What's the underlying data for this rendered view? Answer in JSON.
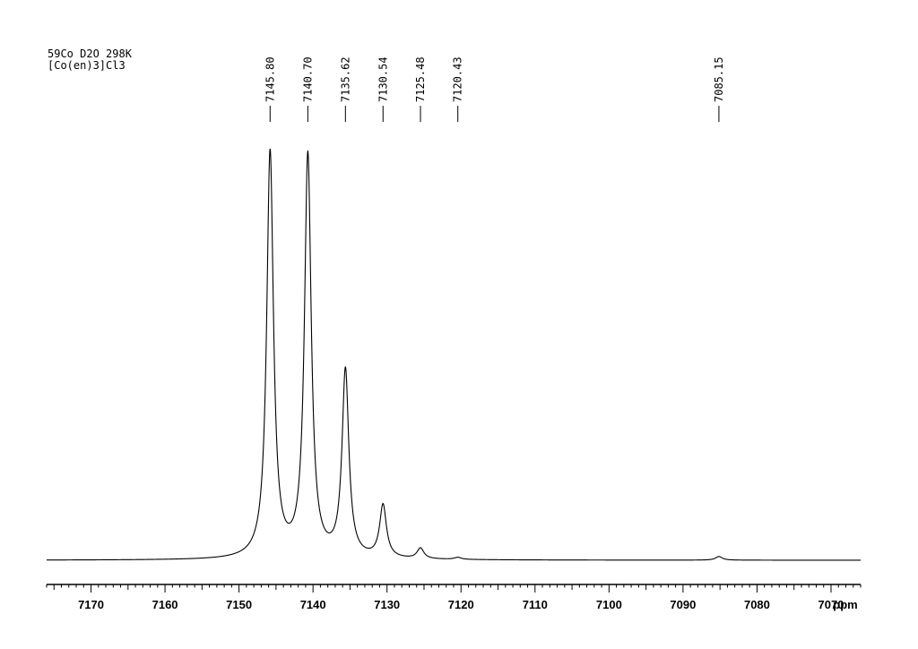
{
  "header": {
    "line1": "59Co D2O 298K",
    "line2": "[Co(en)3]Cl3"
  },
  "chart_data": {
    "type": "line",
    "x_unit": "ppm",
    "x_reversed": true,
    "xlim": [
      7176,
      7066
    ],
    "x_ticks": [
      7170,
      7160,
      7150,
      7140,
      7130,
      7120,
      7110,
      7100,
      7090,
      7080,
      7070
    ],
    "minor_tick_step": 1,
    "peak_labels": [
      "7145.80",
      "7140.70",
      "7135.62",
      "7130.54",
      "7125.48",
      "7120.43",
      "7085.15"
    ],
    "series": [
      {
        "type": "lorentzian_sum",
        "baseline": 0,
        "peaks": [
          {
            "ppm": 7145.8,
            "height": 1.0,
            "width": 0.55
          },
          {
            "ppm": 7140.7,
            "height": 0.99,
            "width": 0.55
          },
          {
            "ppm": 7135.62,
            "height": 0.46,
            "width": 0.55
          },
          {
            "ppm": 7130.54,
            "height": 0.13,
            "width": 0.55
          },
          {
            "ppm": 7125.48,
            "height": 0.026,
            "width": 0.55
          },
          {
            "ppm": 7120.43,
            "height": 0.005,
            "width": 0.55
          },
          {
            "ppm": 7085.15,
            "height": 0.009,
            "width": 0.55
          }
        ]
      }
    ],
    "grid": false,
    "legend": false
  }
}
